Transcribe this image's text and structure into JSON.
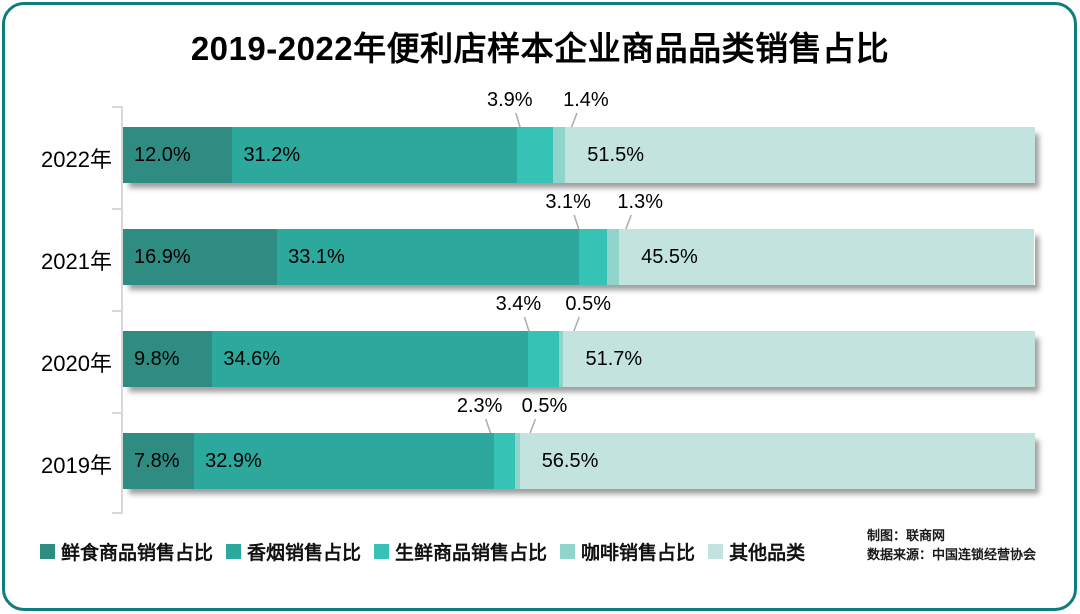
{
  "title": "2019-2022年便利店样本企业商品品类销售占比",
  "chart_data": {
    "type": "bar",
    "stacked": true,
    "orientation": "horizontal",
    "unit": "%",
    "xlim": [
      0,
      100
    ],
    "grid": false,
    "legend_position": "bottom",
    "categories": [
      "2022年",
      "2021年",
      "2020年",
      "2019年"
    ],
    "series": [
      {
        "key": "fresh-food",
        "name": "鲜食商品销售占比",
        "color": "#2E8C83",
        "values": [
          12.0,
          16.9,
          9.8,
          7.8
        ]
      },
      {
        "key": "cigarette",
        "name": "香烟销售占比",
        "color": "#2CA89D",
        "values": [
          31.2,
          33.1,
          34.6,
          32.9
        ]
      },
      {
        "key": "fresh-produce",
        "name": "生鲜商品销售占比",
        "color": "#36C3B5",
        "values": [
          3.9,
          3.1,
          3.4,
          2.3
        ]
      },
      {
        "key": "coffee",
        "name": "咖啡销售占比",
        "color": "#90D5CB",
        "values": [
          1.4,
          1.3,
          0.5,
          0.5
        ]
      },
      {
        "key": "others",
        "name": "其他品类",
        "color": "#C2E3DE",
        "values": [
          51.5,
          45.5,
          51.7,
          56.5
        ]
      }
    ],
    "callout_series_indices": [
      2,
      3
    ],
    "value_label_suffix": "%"
  },
  "credits": {
    "line1": "制图：联商网",
    "line2": "数据来源：中国连锁经营协会"
  },
  "colors": {
    "frame_border": "#0E7D7B",
    "axis": "#D8D8D8",
    "leader_line": "#B3AEAE",
    "text": "#000000"
  }
}
